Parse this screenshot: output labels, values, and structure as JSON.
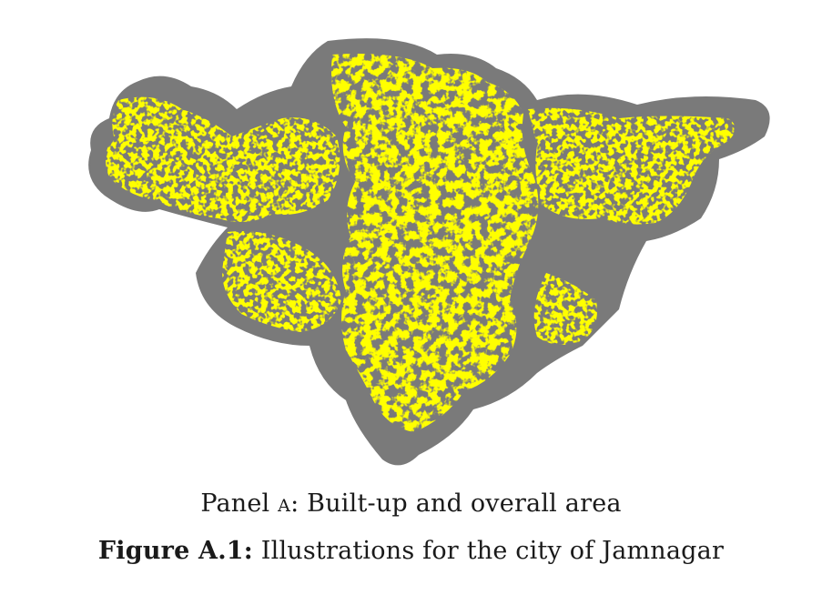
{
  "figure": {
    "panel_prefix": "Panel",
    "panel_letter": "A",
    "panel_text": ": Built-up and overall area",
    "label": "Figure A.1:",
    "caption": " Illustrations for the city of Jamnagar"
  },
  "colors": {
    "overall_area": "#7a7a7a",
    "built_up": "#ffff00",
    "background": "#ffffff"
  }
}
